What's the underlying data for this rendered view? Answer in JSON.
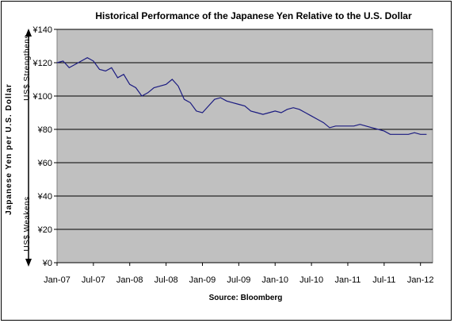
{
  "chart_data": {
    "type": "line",
    "title": "Historical Performance of the Japanese Yen Relative to the U.S. Dollar",
    "ylabel": "Japanese Yen per U.S. Dollar",
    "source": "Source: Bloomberg",
    "annotation_top": "US$ Strengthens",
    "annotation_bottom": "US$ Weakens",
    "ylim": [
      0,
      140
    ],
    "y_ticks": [
      0,
      20,
      40,
      60,
      80,
      100,
      120,
      140
    ],
    "y_tick_labels": [
      "¥0",
      "¥20",
      "¥40",
      "¥60",
      "¥80",
      "¥100",
      "¥120",
      "¥140"
    ],
    "x_range": [
      "2007-01",
      "2012-03"
    ],
    "x_tick_labels": [
      "Jan-07",
      "Jul-07",
      "Jan-08",
      "Jul-08",
      "Jan-09",
      "Jul-09",
      "Jan-10",
      "Jul-10",
      "Jan-11",
      "Jul-11",
      "Jan-12"
    ],
    "x_tick_dates": [
      "2007-01",
      "2007-07",
      "2008-01",
      "2008-07",
      "2009-01",
      "2009-07",
      "2010-01",
      "2010-07",
      "2011-01",
      "2011-07",
      "2012-01"
    ],
    "grid": true,
    "plot_background": "#c0c0c0",
    "line_color": "#1a1a80",
    "series": [
      {
        "x": [
          "2007-01",
          "2007-02",
          "2007-03",
          "2007-04",
          "2007-05",
          "2007-06",
          "2007-07",
          "2007-08",
          "2007-09",
          "2007-10",
          "2007-11",
          "2007-12",
          "2008-01",
          "2008-02",
          "2008-03",
          "2008-04",
          "2008-05",
          "2008-06",
          "2008-07",
          "2008-08",
          "2008-09",
          "2008-10",
          "2008-11",
          "2008-12",
          "2009-01",
          "2009-02",
          "2009-03",
          "2009-04",
          "2009-05",
          "2009-06",
          "2009-07",
          "2009-08",
          "2009-09",
          "2009-10",
          "2009-11",
          "2009-12",
          "2010-01",
          "2010-02",
          "2010-03",
          "2010-04",
          "2010-05",
          "2010-06",
          "2010-07",
          "2010-08",
          "2010-09",
          "2010-10",
          "2010-11",
          "2010-12",
          "2011-01",
          "2011-02",
          "2011-03",
          "2011-04",
          "2011-05",
          "2011-06",
          "2011-07",
          "2011-08",
          "2011-09",
          "2011-10",
          "2011-11",
          "2011-12",
          "2012-01",
          "2012-02"
        ],
        "values": [
          120,
          121,
          117,
          119,
          121,
          123,
          121,
          116,
          115,
          117,
          111,
          113,
          107,
          105,
          100,
          102,
          105,
          106,
          107,
          110,
          106,
          98,
          96,
          91,
          90,
          94,
          98,
          99,
          97,
          96,
          95,
          94,
          91,
          90,
          89,
          90,
          91,
          90,
          92,
          93,
          92,
          90,
          88,
          86,
          84,
          81,
          82,
          82,
          82,
          82,
          83,
          82,
          81,
          80,
          79,
          77,
          77,
          77,
          77,
          78,
          77,
          77
        ]
      }
    ]
  }
}
